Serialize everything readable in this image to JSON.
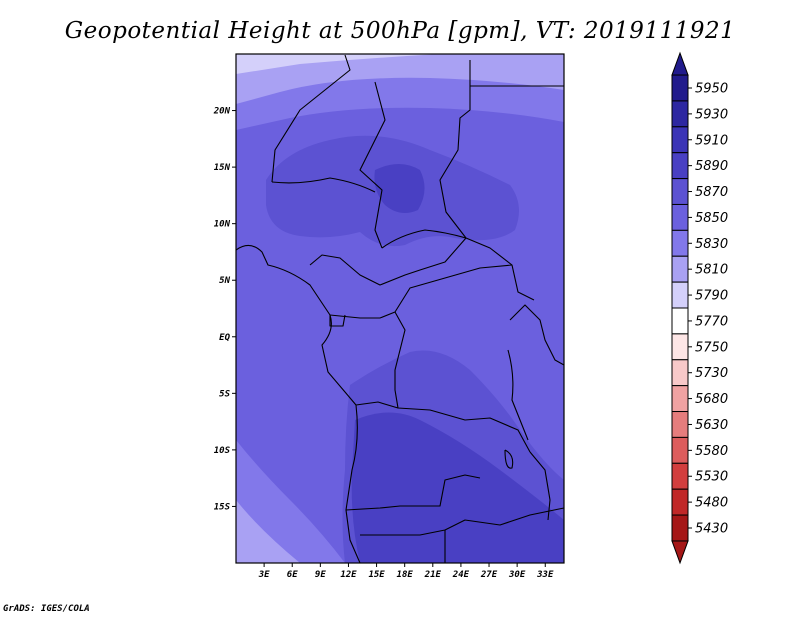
{
  "title": "Geopotential Height at 500hPa [gpm], VT: 2019111921",
  "credit": "GrADS: IGES/COLA",
  "map": {
    "lon_range": [
      0,
      35
    ],
    "lat_range": [
      -20,
      25
    ],
    "x_ticks": [
      {
        "lon": 3,
        "label": "3E"
      },
      {
        "lon": 6,
        "label": "6E"
      },
      {
        "lon": 9,
        "label": "9E"
      },
      {
        "lon": 12,
        "label": "12E"
      },
      {
        "lon": 15,
        "label": "15E"
      },
      {
        "lon": 18,
        "label": "18E"
      },
      {
        "lon": 21,
        "label": "21E"
      },
      {
        "lon": 24,
        "label": "24E"
      },
      {
        "lon": 27,
        "label": "27E"
      },
      {
        "lon": 30,
        "label": "30E"
      },
      {
        "lon": 33,
        "label": "33E"
      }
    ],
    "y_ticks": [
      {
        "lat": 20,
        "label": "20N"
      },
      {
        "lat": 15,
        "label": "15N"
      },
      {
        "lat": 10,
        "label": "10N"
      },
      {
        "lat": 5,
        "label": "5N"
      },
      {
        "lat": 0,
        "label": "EQ"
      },
      {
        "lat": -5,
        "label": "5S"
      },
      {
        "lat": -10,
        "label": "10S"
      },
      {
        "lat": -15,
        "label": "15S"
      }
    ]
  },
  "colorbar": {
    "levels": [
      "5950",
      "5930",
      "5910",
      "5890",
      "5870",
      "5850",
      "5830",
      "5810",
      "5790",
      "5770",
      "5750",
      "5730",
      "5680",
      "5630",
      "5580",
      "5530",
      "5480",
      "5430"
    ],
    "colors": [
      "#211b8c",
      "#2d27a1",
      "#3b34b6",
      "#4940c3",
      "#5c52d2",
      "#6b60de",
      "#8278ea",
      "#a9a1f3",
      "#d4d0fa",
      "#ffffff",
      "#fde6e6",
      "#f8c9c9",
      "#f0a2a2",
      "#e57d7d",
      "#dc5c5c",
      "#d23e3e",
      "#c02828",
      "#a51717"
    ]
  }
}
